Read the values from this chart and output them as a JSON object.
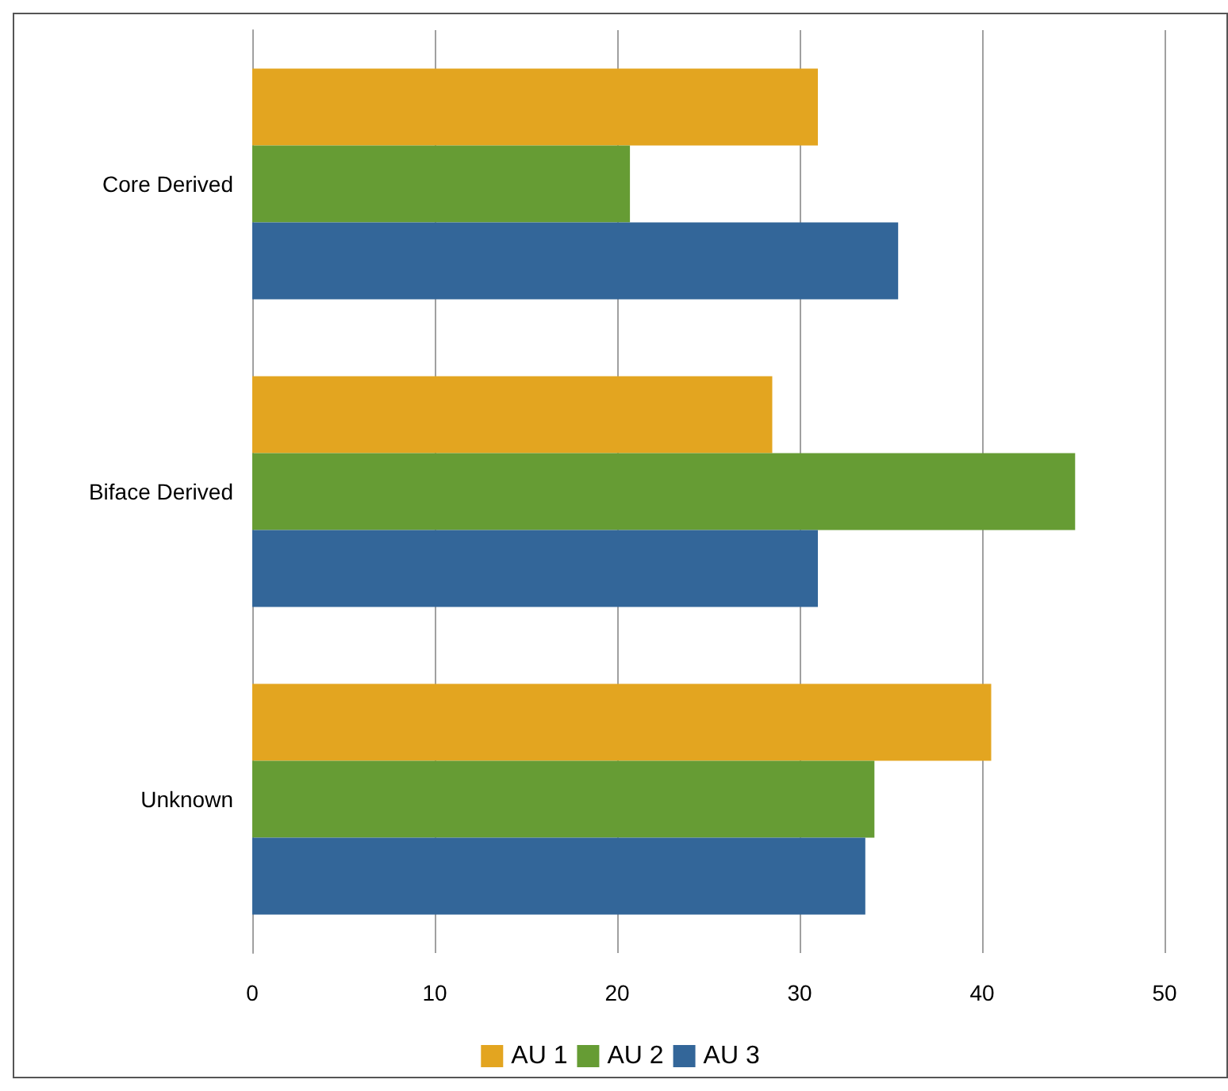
{
  "chart_data": {
    "type": "bar",
    "orientation": "horizontal",
    "categories": [
      "Core Derived",
      "Biface Derived",
      "Unknown"
    ],
    "series": [
      {
        "name": "AU 1",
        "color": "#e3a520",
        "values": [
          31.0,
          28.5,
          40.5
        ]
      },
      {
        "name": "AU 2",
        "color": "#669c34",
        "values": [
          20.7,
          45.1,
          34.1
        ]
      },
      {
        "name": "AU 3",
        "color": "#336699",
        "values": [
          35.4,
          31.0,
          33.6
        ]
      }
    ],
    "xlim": [
      0,
      50
    ],
    "xticks": [
      0,
      10,
      20,
      30,
      40,
      50
    ],
    "grid": "x",
    "legend": "bottom"
  }
}
